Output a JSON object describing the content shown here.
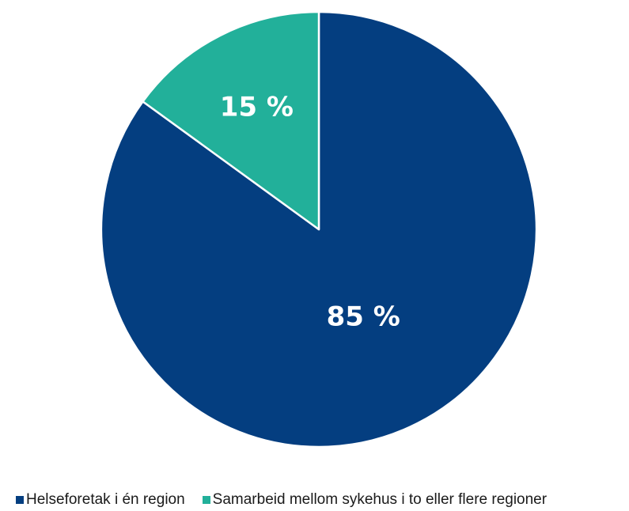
{
  "chart_data": {
    "type": "pie",
    "categories": [
      "Helseforetak i én region",
      "Samarbeid mellom sykehus i to eller flere regioner"
    ],
    "values": [
      85,
      15
    ],
    "labels": [
      "85 %",
      "15 %"
    ],
    "colors": [
      "#043e80",
      "#22b09a"
    ],
    "legend_position": "bottom",
    "title": ""
  }
}
